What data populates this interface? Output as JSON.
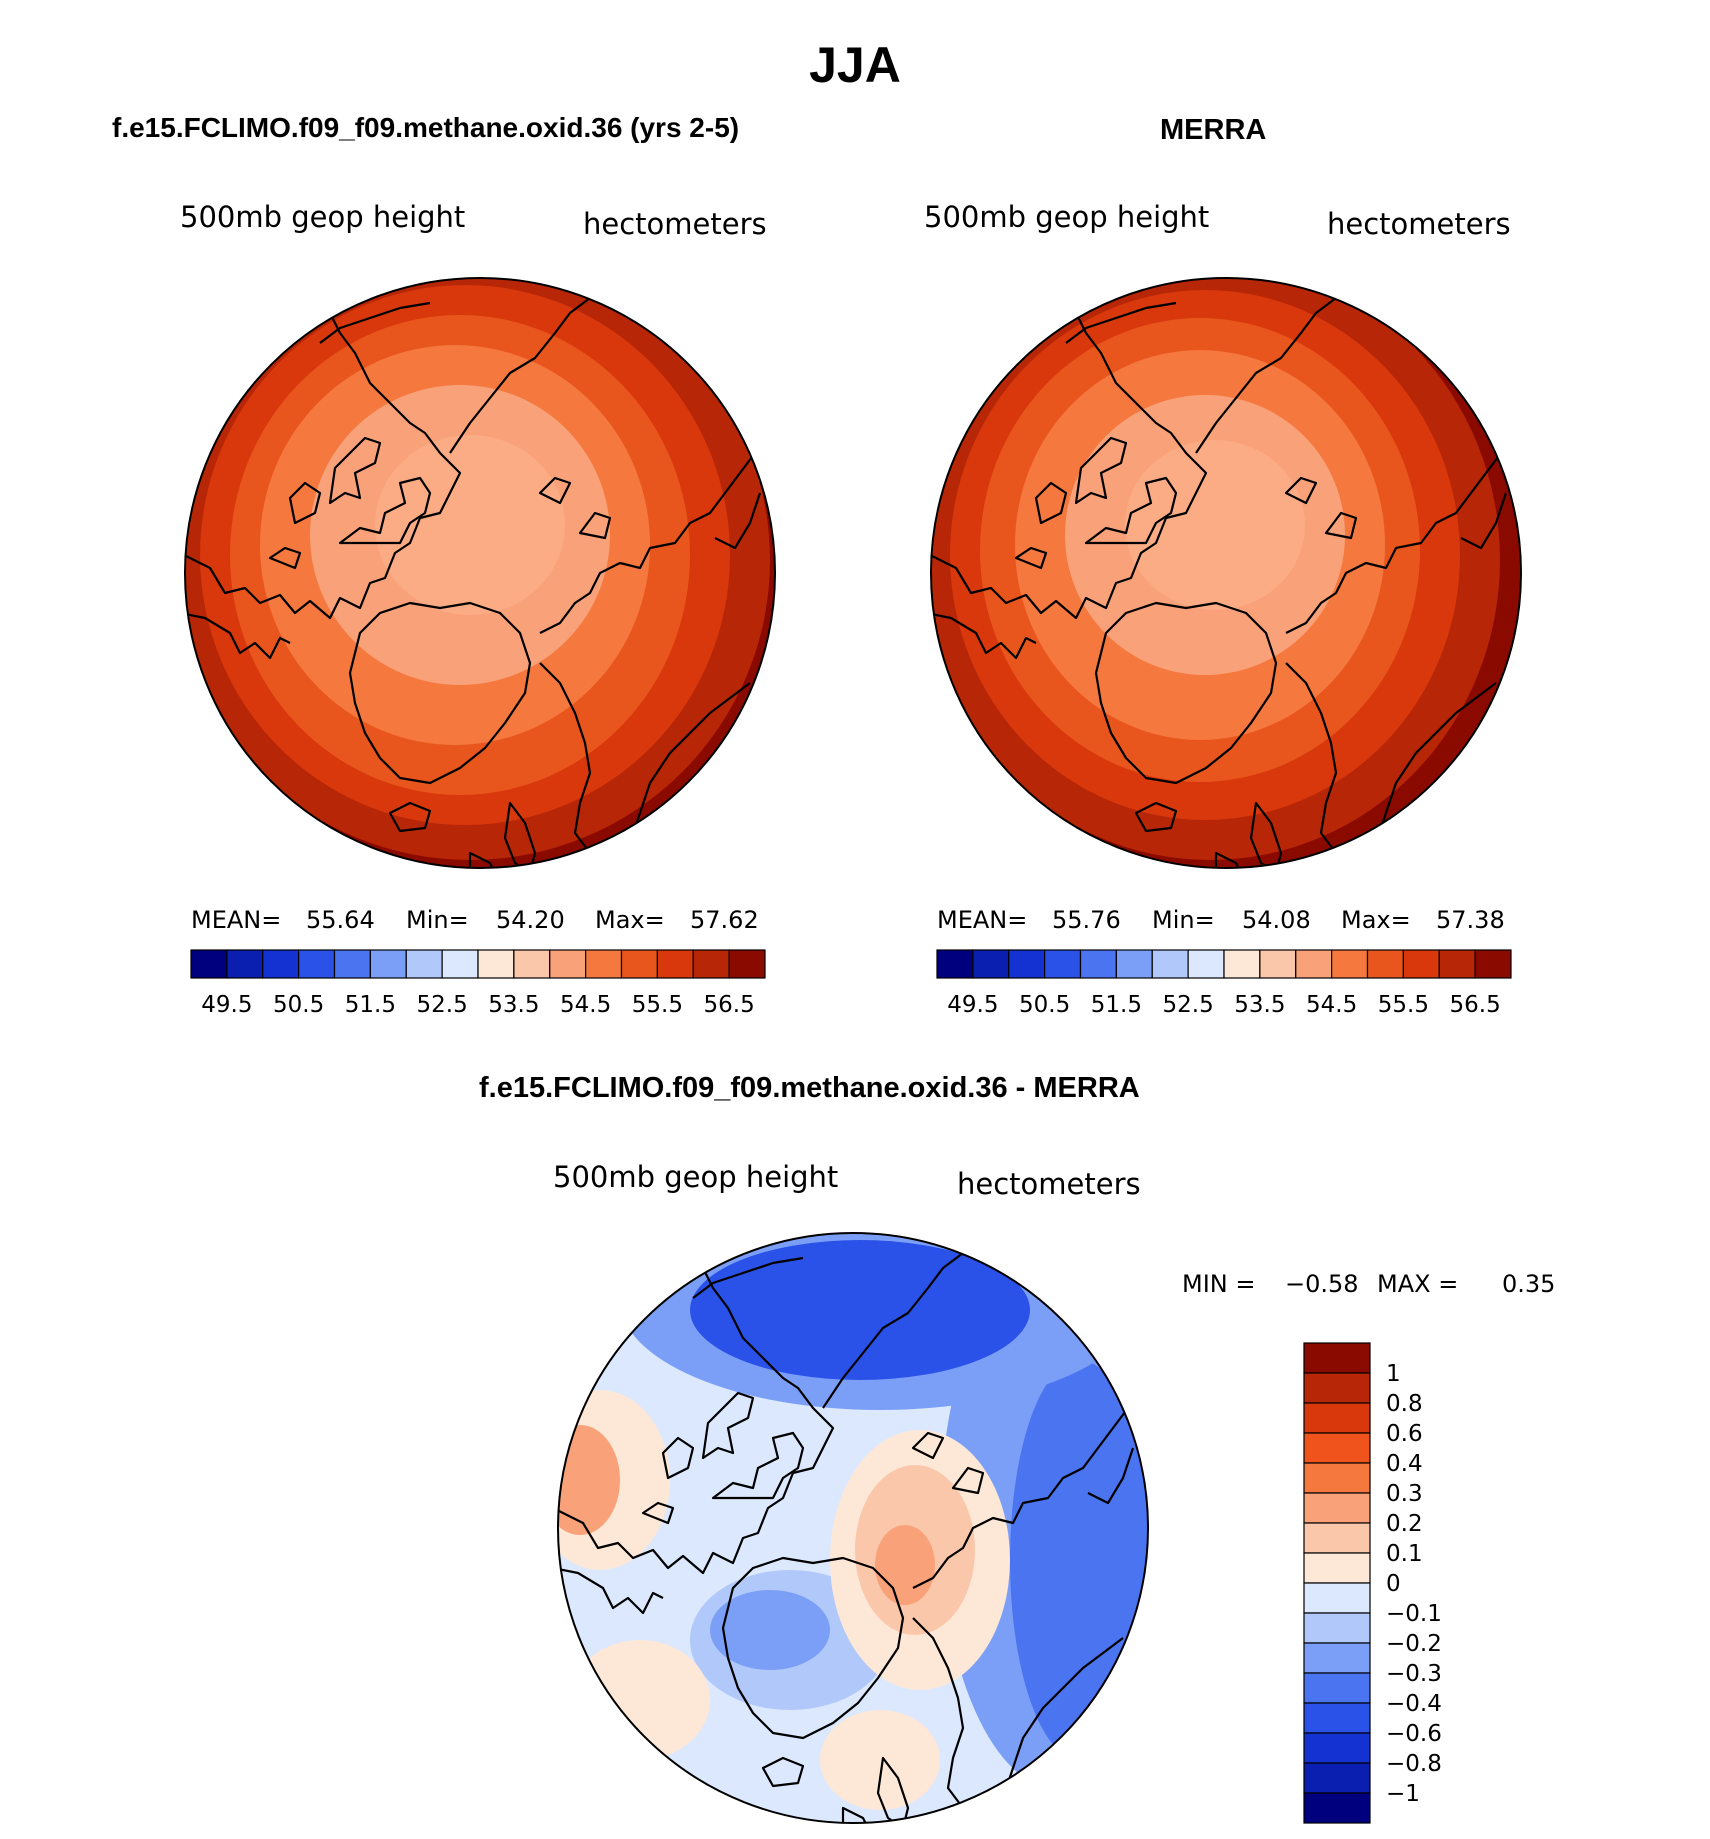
{
  "title": "JJA",
  "panels": [
    {
      "id": "model",
      "heading": "f.e15.FCLIMO.f09_f09.methane.oxid.36 (yrs 2-5)",
      "variable": "500mb geop height",
      "units": "hectometers",
      "stats": {
        "mean_label": "MEAN=",
        "mean": "55.64",
        "min_label": "Min=",
        "min": "54.20",
        "max_label": "Max=",
        "max": "57.62"
      }
    },
    {
      "id": "obs",
      "heading": "MERRA",
      "variable": "500mb geop height",
      "units": "hectometers",
      "stats": {
        "mean_label": "MEAN=",
        "mean": "55.76",
        "min_label": "Min=",
        "min": "54.08",
        "max_label": "Max=",
        "max": "57.38"
      }
    }
  ],
  "abs_colorbar": {
    "labels": [
      "49.5",
      "50.5",
      "51.5",
      "52.5",
      "53.5",
      "54.5",
      "55.5",
      "56.5"
    ],
    "colors": [
      "#00007f",
      "#0a1fb0",
      "#1432d2",
      "#2a52e8",
      "#4a74f0",
      "#7b9ff6",
      "#b1c8fa",
      "#dbe8fd",
      "#fde8d8",
      "#fbc7ab",
      "#f9a27a",
      "#f5783f",
      "#e9561d",
      "#d8380c",
      "#b72606",
      "#8a0a00"
    ]
  },
  "diff_panel": {
    "heading": "f.e15.FCLIMO.f09_f09.methane.oxid.36 - MERRA",
    "variable": "500mb geop height",
    "units": "hectometers",
    "minmax": {
      "min_label": "MIN =",
      "min": "−0.58",
      "max_label": "MAX =",
      "max": "0.35"
    }
  },
  "diff_colorbar": {
    "labels": [
      "1",
      "0.8",
      "0.6",
      "0.4",
      "0.3",
      "0.2",
      "0.1",
      "0",
      "−0.1",
      "−0.2",
      "−0.3",
      "−0.4",
      "−0.6",
      "−0.8",
      "−1"
    ],
    "colors": [
      "#8a0a00",
      "#b72606",
      "#d8380c",
      "#f0541c",
      "#f5783f",
      "#f9a27a",
      "#fbc7ab",
      "#fde8d8",
      "#dbe8fd",
      "#b1c8fa",
      "#7b9ff6",
      "#4a74f0",
      "#2a52e8",
      "#1432d2",
      "#0a1fb0",
      "#00007f"
    ]
  }
}
